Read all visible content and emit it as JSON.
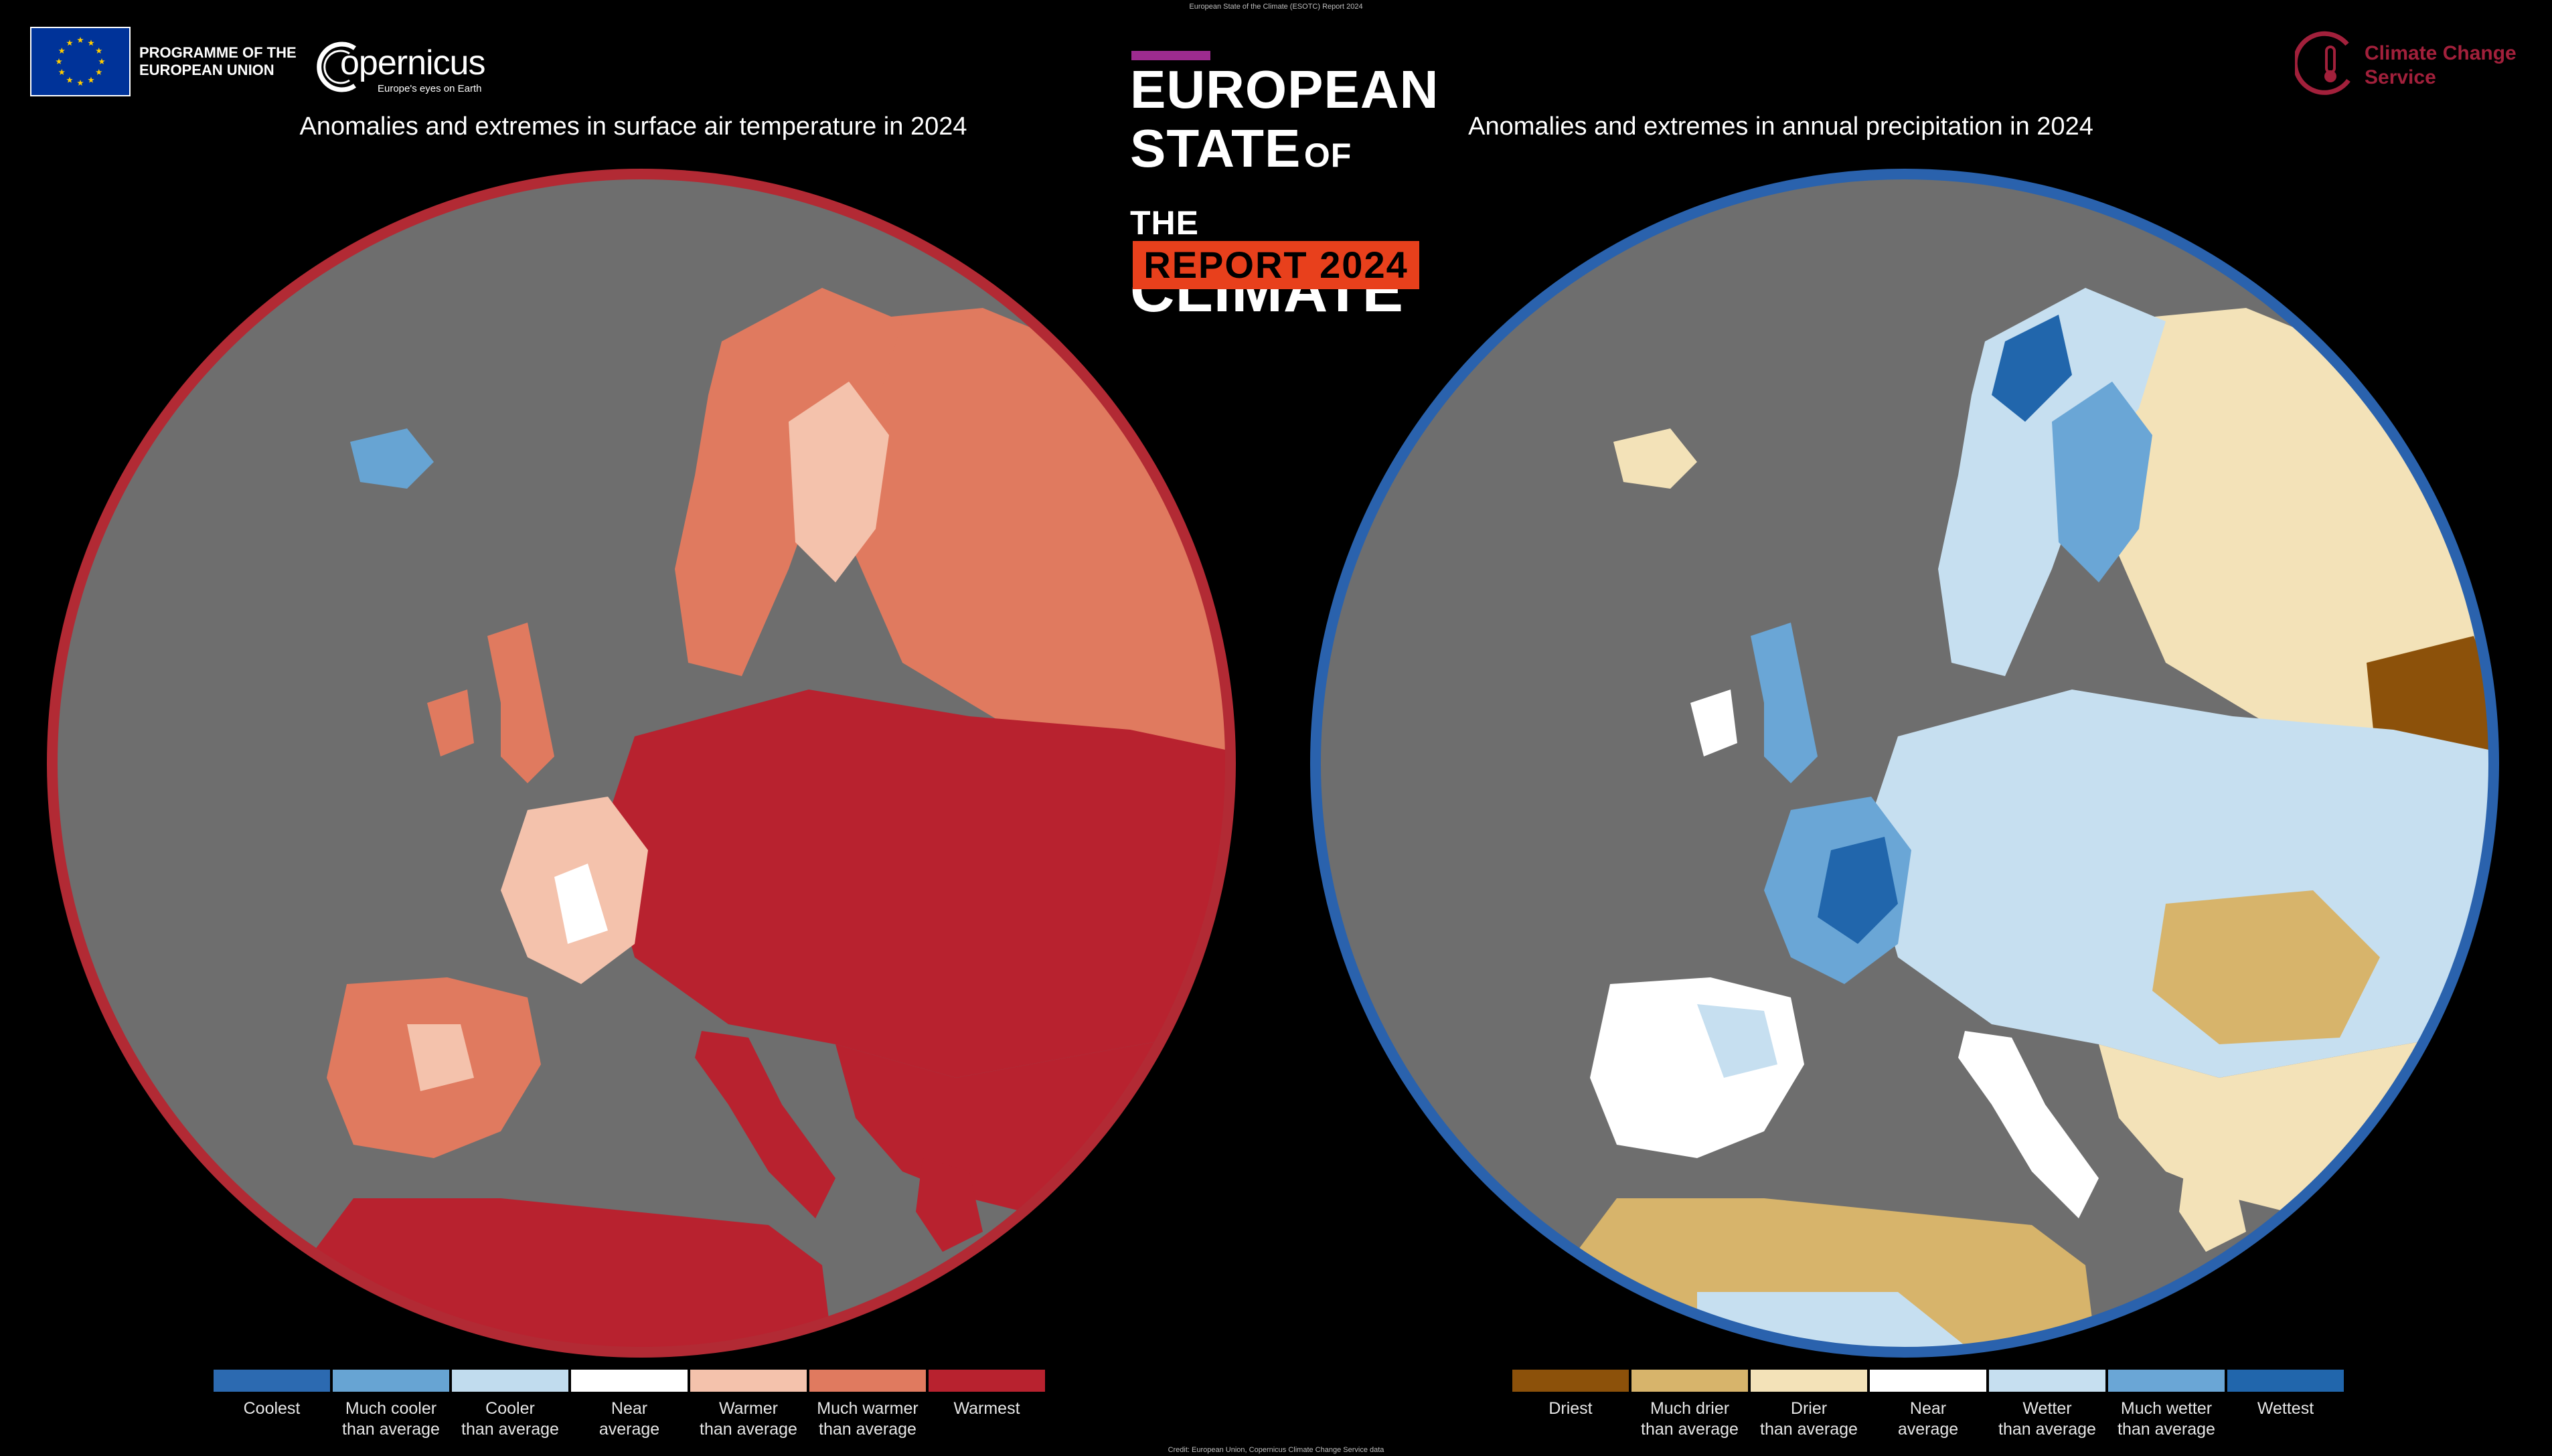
{
  "header": {
    "top_note": "European State of the Climate (ESOTC) Report 2024",
    "programme": "PROGRAMME OF THE EUROPEAN UNION",
    "copernicus_wordmark": "opernicus",
    "copernicus_tagline": "Europe's eyes on Earth",
    "c3s_name": "Climate Change Service",
    "report_line1": "EUROPEAN",
    "report_line2_big": "STATE",
    "report_line2_small": "OF THE",
    "report_line3": "CLIMATE",
    "report_year": "REPORT 2024"
  },
  "colors": {
    "eu_blue": "#003399",
    "eu_star": "#ffcc00",
    "c3s": "#a2203b",
    "report_accent": "#9d2b8f",
    "report_year_bg": "#e8401c",
    "sea": "#6e6e6e",
    "temperature_ring": "#b22a34",
    "precipitation_ring": "#2a62ad"
  },
  "maps": {
    "temperature": {
      "title": "Anomalies and extremes in surface air temperature in 2024",
      "legend": [
        {
          "label": "Coolest",
          "color": "#2c6ab1"
        },
        {
          "label": "Much cooler\nthan average",
          "color": "#67a4d3"
        },
        {
          "label": "Cooler\nthan average",
          "color": "#c1dcee"
        },
        {
          "label": "Near\naverage",
          "color": "#ffffff"
        },
        {
          "label": "Warmer\nthan average",
          "color": "#f4c2ac"
        },
        {
          "label": "Much warmer\nthan average",
          "color": "#e07a5f"
        },
        {
          "label": "Warmest",
          "color": "#b8222f"
        }
      ]
    },
    "precipitation": {
      "title": "Anomalies and extremes in annual precipitation in 2024",
      "legend": [
        {
          "label": "Driest",
          "color": "#8c510a"
        },
        {
          "label": "Much drier\nthan average",
          "color": "#d7b46b"
        },
        {
          "label": "Drier\nthan average",
          "color": "#f3e2b8"
        },
        {
          "label": "Near\naverage",
          "color": "#ffffff"
        },
        {
          "label": "Wetter\nthan average",
          "color": "#c6dff0"
        },
        {
          "label": "Much wetter\nthan average",
          "color": "#6aa6d6"
        },
        {
          "label": "Wettest",
          "color": "#2166ac"
        }
      ]
    }
  },
  "footer": {
    "credit": "Credit: European Union, Copernicus Climate Change Service data"
  }
}
